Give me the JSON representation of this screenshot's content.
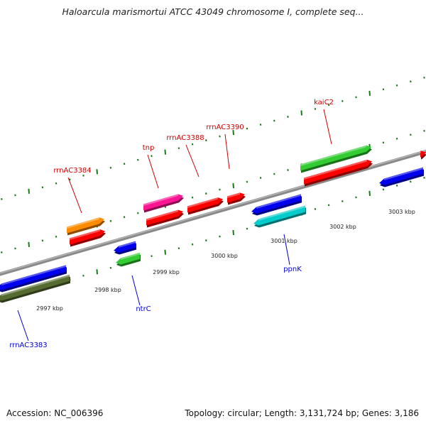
{
  "title": "Haloarcula marismortui ATCC 43049 chromosome I, complete seq...",
  "accession": "Accession: NC_006396",
  "summary": "Topology: circular; Length: 3,131,724 bp; Genes: 3,186",
  "colors": {
    "backbone": "#8a8a8a",
    "tick": "#1a7a1a",
    "forward_label": "#cc0000",
    "reverse_label": "#0000cc"
  },
  "ruler_labels": [
    {
      "kbp": 2997,
      "text": "2997 kbp"
    },
    {
      "kbp": 2998,
      "text": "2998 kbp"
    },
    {
      "kbp": 2999,
      "text": "2999 kbp"
    },
    {
      "kbp": 3000,
      "text": "3000 kbp"
    },
    {
      "kbp": 3001,
      "text": "3001 kbp"
    },
    {
      "kbp": 3002,
      "text": "3002 kbp"
    },
    {
      "kbp": 3003,
      "text": "3003 kbp"
    }
  ],
  "genes": [
    {
      "name": "rrnAC3384",
      "strand": "forward",
      "color": "#ff8c00"
    },
    {
      "name": "tnp",
      "strand": "forward",
      "color": "#ff1493"
    },
    {
      "name": "rrnAC3388",
      "strand": "forward",
      "color": "#ff0000"
    },
    {
      "name": "rrnAC3390",
      "strand": "forward",
      "color": "#ff0000"
    },
    {
      "name": "kaiC2",
      "strand": "forward",
      "color": "#33cc33"
    },
    {
      "name": "rrnAC3383",
      "strand": "reverse",
      "color": "#556b2f"
    },
    {
      "name": "ntrC",
      "strand": "reverse",
      "color": "#33cc33"
    },
    {
      "name": "ppnK",
      "strand": "reverse",
      "color": "#00cccc"
    }
  ]
}
